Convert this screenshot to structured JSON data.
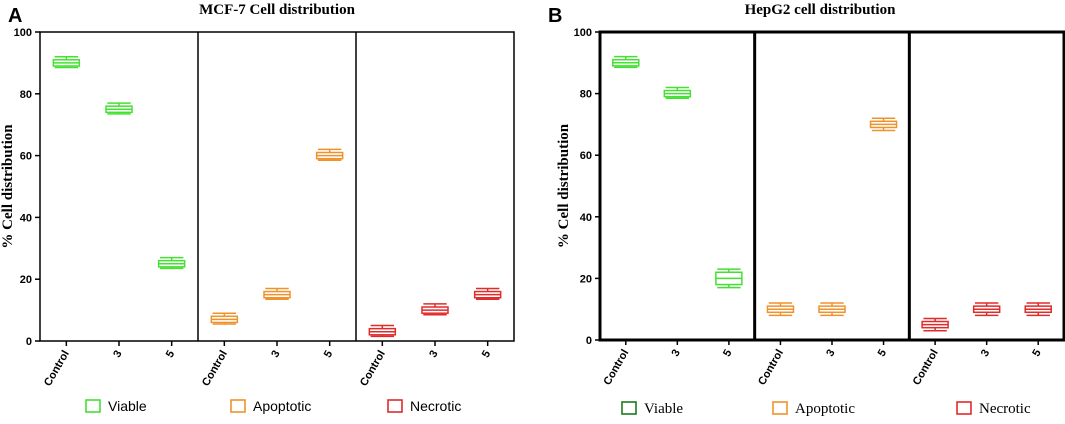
{
  "chart_data": [
    {
      "panel_label": "A",
      "type": "box",
      "title": "MCF-7 Cell distribution",
      "xlabel": "",
      "ylabel": "% Cell distribution",
      "ylim": [
        0,
        100
      ],
      "yticks": [
        "0",
        "20",
        "40",
        "60",
        "80",
        "100"
      ],
      "categories": [
        "Control",
        "3",
        "5"
      ],
      "groups": [
        {
          "name": "Viable",
          "color": "#44e032",
          "boxes": [
            {
              "min": 88.5,
              "q1": 89,
              "median": 90,
              "q3": 91,
              "max": 92
            },
            {
              "min": 73.5,
              "q1": 74,
              "median": 75,
              "q3": 76,
              "max": 77
            },
            {
              "min": 23.5,
              "q1": 24,
              "median": 25,
              "q3": 26,
              "max": 27
            }
          ]
        },
        {
          "name": "Apoptotic",
          "color": "#f0922c",
          "boxes": [
            {
              "min": 5.5,
              "q1": 6,
              "median": 7,
              "q3": 8,
              "max": 9
            },
            {
              "min": 13.5,
              "q1": 14,
              "median": 15,
              "q3": 16,
              "max": 17
            },
            {
              "min": 58.5,
              "q1": 59,
              "median": 60,
              "q3": 61,
              "max": 62
            }
          ]
        },
        {
          "name": "Necrotic",
          "color": "#e02b2b",
          "boxes": [
            {
              "min": 1.5,
              "q1": 2,
              "median": 3,
              "q3": 4,
              "max": 5
            },
            {
              "min": 8.5,
              "q1": 9,
              "median": 10,
              "q3": 11,
              "max": 12
            },
            {
              "min": 13.5,
              "q1": 14,
              "median": 15,
              "q3": 16,
              "max": 17
            }
          ]
        }
      ],
      "legend": [
        "Viable",
        "Apoptotic",
        "Necrotic"
      ],
      "legend_colors": [
        "#44e032",
        "#f0922c",
        "#e02b2b"
      ]
    },
    {
      "panel_label": "B",
      "type": "box",
      "title": "HepG2 cell distribution",
      "xlabel": "",
      "ylabel": "% Cell distribution",
      "ylim": [
        0,
        100
      ],
      "yticks": [
        "0",
        "20",
        "40",
        "60",
        "80",
        "100"
      ],
      "categories": [
        "Control",
        "3",
        "5"
      ],
      "groups": [
        {
          "name": "Viable",
          "color": "#44e032",
          "boxes": [
            {
              "min": 88.5,
              "q1": 89,
              "median": 90,
              "q3": 91,
              "max": 92
            },
            {
              "min": 78.5,
              "q1": 79,
              "median": 80,
              "q3": 81,
              "max": 82
            },
            {
              "min": 17,
              "q1": 18,
              "median": 20,
              "q3": 22,
              "max": 23
            }
          ]
        },
        {
          "name": "Apoptotic",
          "color": "#f0922c",
          "boxes": [
            {
              "min": 8,
              "q1": 9,
              "median": 10,
              "q3": 11,
              "max": 12
            },
            {
              "min": 8,
              "q1": 9,
              "median": 10,
              "q3": 11,
              "max": 12
            },
            {
              "min": 68,
              "q1": 69,
              "median": 70,
              "q3": 71,
              "max": 72
            }
          ]
        },
        {
          "name": "Necrotic",
          "color": "#e02b2b",
          "boxes": [
            {
              "min": 3,
              "q1": 4,
              "median": 5,
              "q3": 6,
              "max": 7
            },
            {
              "min": 8,
              "q1": 9,
              "median": 10,
              "q3": 11,
              "max": 12
            },
            {
              "min": 8,
              "q1": 9,
              "median": 10,
              "q3": 11,
              "max": 12
            }
          ]
        }
      ],
      "legend": [
        "Viable",
        "Apoptotic",
        "Necrotic"
      ],
      "legend_colors": [
        "#1e7a1e",
        "#f0922c",
        "#e02b2b"
      ]
    }
  ]
}
